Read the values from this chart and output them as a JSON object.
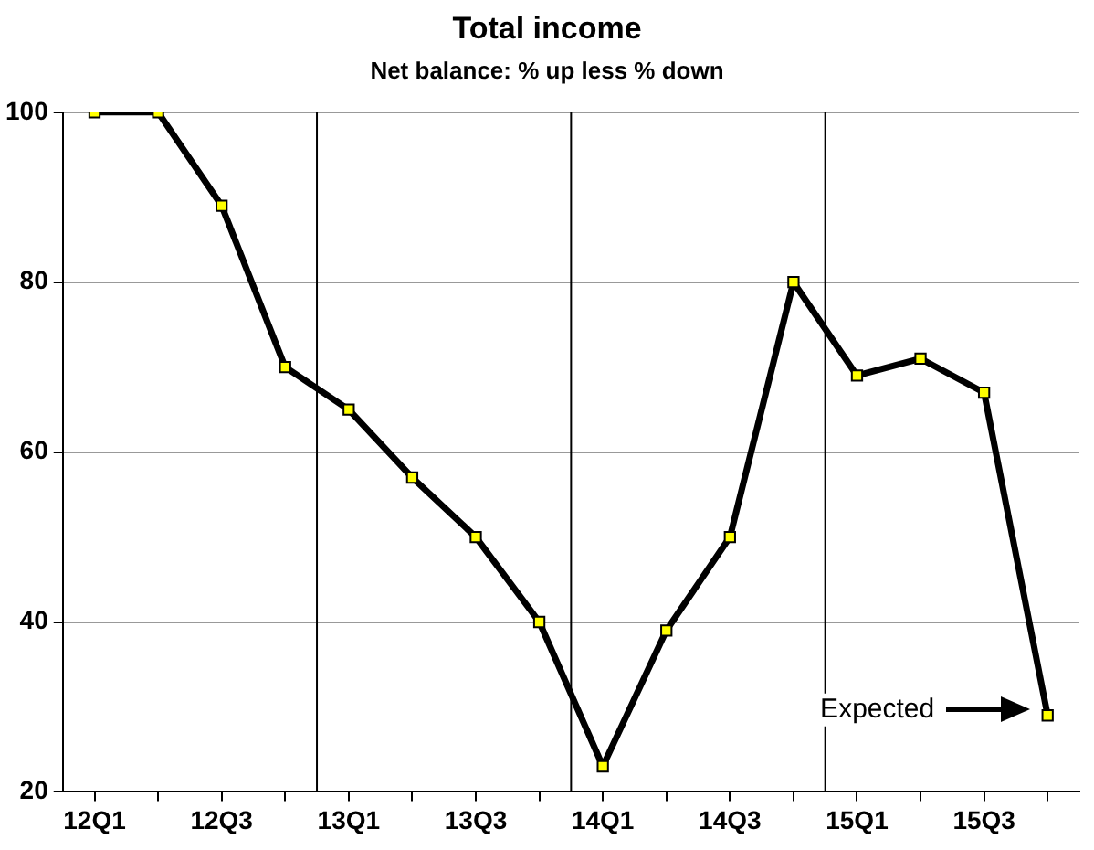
{
  "chart_data": {
    "type": "line",
    "title": "Total income",
    "subtitle": "Net balance: % up less % down",
    "categories": [
      "12Q1",
      null,
      "12Q3",
      null,
      "13Q1",
      null,
      "13Q3",
      null,
      "14Q1",
      null,
      "14Q3",
      null,
      "15Q1",
      null,
      "15Q3",
      null
    ],
    "ylim": [
      20,
      100
    ],
    "yticks": [
      20,
      40,
      60,
      80,
      100
    ],
    "grid": "y",
    "marker": "square",
    "line_style": "solid",
    "series": [
      {
        "color": "#000000",
        "colors": [
          "#ffff00",
          "#ffff00",
          "#ffff00",
          "#ffff00",
          "#ffff00",
          "#ffff00",
          "#ffff00",
          "#ffff00",
          "#ffff00",
          "#ffff00",
          "#ffff00",
          "#ffff00",
          "#ffff00",
          "#ffff00",
          "#ffff00",
          "#ffff00"
        ],
        "values": [
          100,
          100,
          89,
          70,
          65,
          57,
          50,
          40,
          23,
          39,
          50,
          80,
          69,
          71,
          67,
          29
        ]
      }
    ],
    "annotations": [
      "Expected"
    ]
  }
}
